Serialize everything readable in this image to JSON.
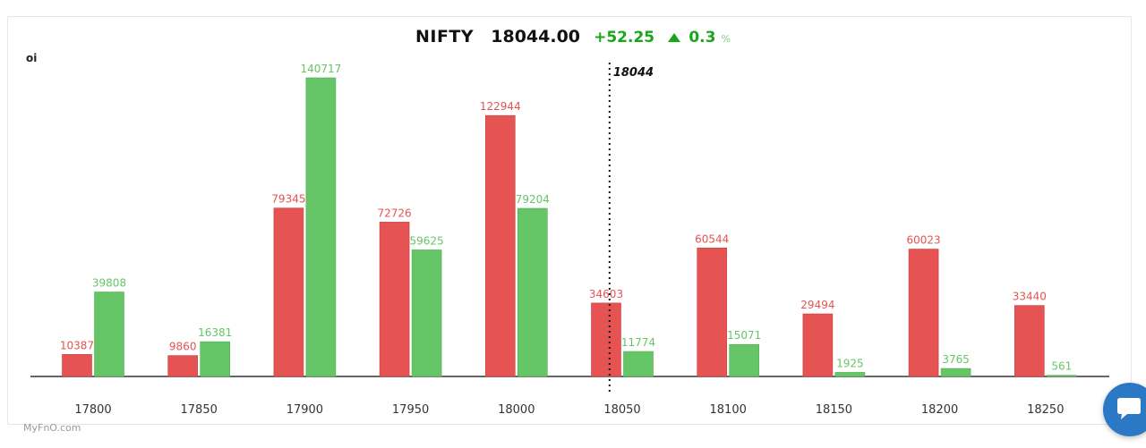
{
  "header": {
    "symbol": "NIFTY",
    "price": "18044.00",
    "change": "+52.25",
    "change_pct": "0.3",
    "pct_sign": "%"
  },
  "brand": "MyFnO.com",
  "icons": {
    "trend": "triangle-up-icon",
    "chat": "chat-bubble-icon"
  },
  "colors": {
    "call_oi": "#e55353",
    "put_oi": "#66c566",
    "positive": "#1aa61a"
  },
  "chart_data": {
    "type": "bar",
    "ylabel": "oi",
    "categories": [
      "17800",
      "17850",
      "17900",
      "17950",
      "18000",
      "18050",
      "18100",
      "18150",
      "18200",
      "18250"
    ],
    "series": [
      {
        "color": "#e55353",
        "values": [
          10387,
          9860,
          79345,
          72726,
          122944,
          34603,
          60544,
          29494,
          60023,
          33440
        ]
      },
      {
        "color": "#66c566",
        "values": [
          39808,
          16381,
          140717,
          59625,
          79204,
          11774,
          15071,
          1925,
          3765,
          561
        ]
      }
    ],
    "spot": {
      "value": 18044,
      "label": "18044"
    },
    "ylim": [
      0,
      140717
    ]
  }
}
